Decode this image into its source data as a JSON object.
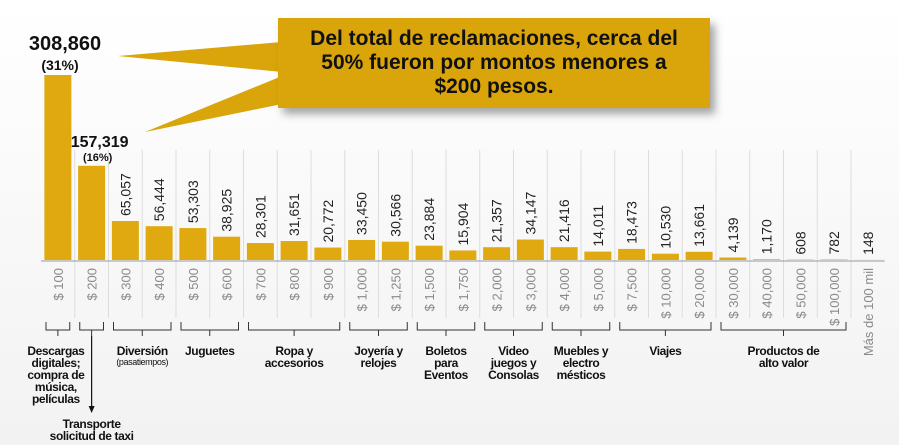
{
  "chart_data": {
    "type": "bar",
    "callout": "Del total de reclamaciones, cerca del 50% fueron por montos menores a $200 pesos.",
    "categories": [
      "$ 100",
      "$ 200",
      "$ 300",
      "$ 400",
      "$ 500",
      "$ 600",
      "$ 700",
      "$ 800",
      "$ 900",
      "$ 1,000",
      "$ 1,250",
      "$ 1,500",
      "$ 1,750",
      "$ 2,000",
      "$ 3,000",
      "$ 4,000",
      "$ 5,000",
      "$ 7,500",
      "$ 10,000",
      "$ 20,000",
      "$ 30,000",
      "$ 40,000",
      "$ 50,000",
      "$ 100,000",
      "Más de 100 mil"
    ],
    "values": [
      308860,
      157319,
      65057,
      56444,
      53303,
      38925,
      28301,
      31651,
      20772,
      33450,
      30566,
      23884,
      15904,
      21357,
      34147,
      21416,
      14011,
      18473,
      10530,
      13661,
      4139,
      1170,
      608,
      782,
      148
    ],
    "value_labels": [
      "308,860",
      "157,319",
      "65,057",
      "56,444",
      "53,303",
      "38,925",
      "28,301",
      "31,651",
      "20,772",
      "33,450",
      "30,566",
      "23,884",
      "15,904",
      "21,357",
      "34,147",
      "21,416",
      "14,011",
      "18,473",
      "10,530",
      "13,661",
      "4,139",
      "1,170",
      "608",
      "782",
      "148"
    ],
    "share_labels": [
      "(31%)",
      "(16%)",
      null,
      null,
      null,
      null,
      null,
      null,
      null,
      null,
      null,
      null,
      null,
      null,
      null,
      null,
      null,
      null,
      null,
      null,
      null,
      null,
      null,
      null,
      null
    ],
    "color": "#dfa90f",
    "groups": [
      {
        "label": "Descargas\ndigitales;\ncompra de\nmúsica,\npelículas",
        "start": 0,
        "end": 0
      },
      {
        "label": "Transporte\nsolicitud de taxi",
        "start": 1,
        "end": 1
      },
      {
        "label": "Diversión",
        "sublabel": "(pasatiempos)",
        "start": 2,
        "end": 3
      },
      {
        "label": "Juguetes",
        "start": 4,
        "end": 5
      },
      {
        "label": "Ropa y\naccesorios",
        "start": 6,
        "end": 8
      },
      {
        "label": "Joyería y\nrelojes",
        "start": 9,
        "end": 10
      },
      {
        "label": "Boletos\npara\nEventos",
        "start": 11,
        "end": 12
      },
      {
        "label": "Video\njuegos y\nConsolas",
        "start": 13,
        "end": 14
      },
      {
        "label": "Muebles y\nelectro\nmésticos",
        "start": 15,
        "end": 16
      },
      {
        "label": "Viajes",
        "start": 17,
        "end": 19
      },
      {
        "label": "Productos de\nalto valor",
        "start": 20,
        "end": 23
      }
    ]
  }
}
